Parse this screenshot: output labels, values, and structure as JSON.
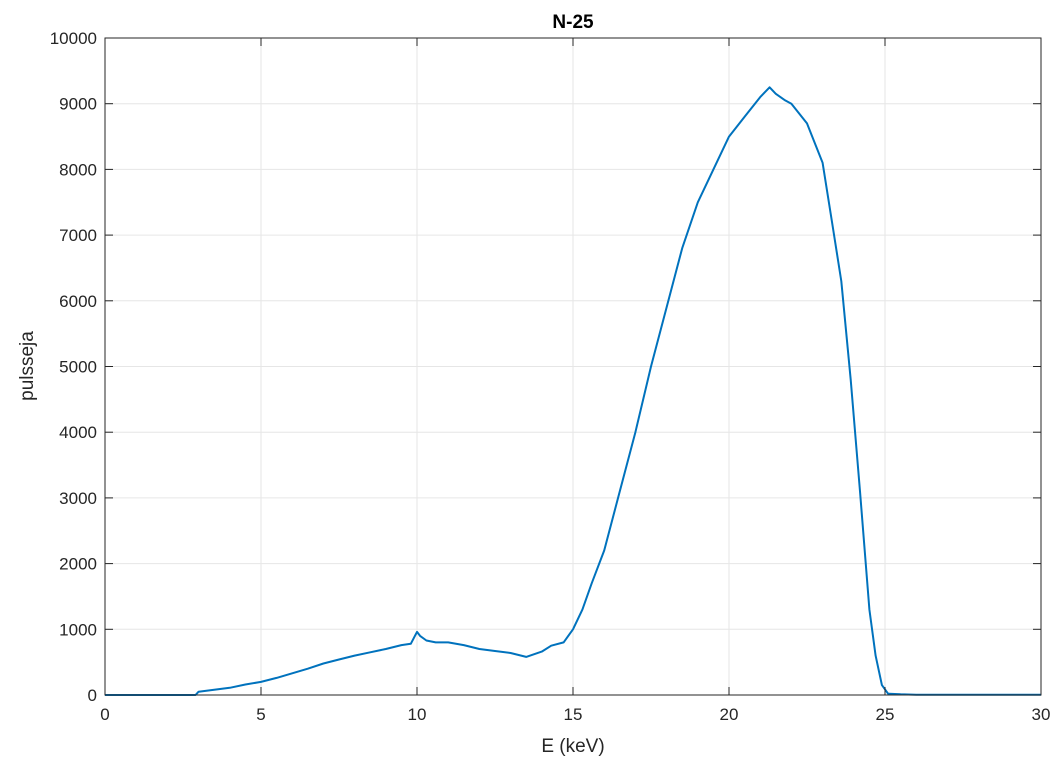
{
  "chart_data": {
    "type": "line",
    "title": "N-25",
    "xlabel": "E (keV)",
    "ylabel": "pulsseja",
    "xlim": [
      0,
      30
    ],
    "ylim": [
      0,
      10000
    ],
    "xticks": [
      0,
      5,
      10,
      15,
      20,
      25,
      30
    ],
    "yticks": [
      0,
      1000,
      2000,
      3000,
      4000,
      5000,
      6000,
      7000,
      8000,
      9000,
      10000
    ],
    "grid": true,
    "box": true,
    "colors": {
      "line": "#0072BD",
      "grid": "#e6e6e6",
      "axis": "#262626"
    },
    "series": [
      {
        "x": [
          0,
          1,
          2,
          2.9,
          3.0,
          3.5,
          4.0,
          4.5,
          5.0,
          5.5,
          6.0,
          6.5,
          7.0,
          7.5,
          8.0,
          8.5,
          9.0,
          9.5,
          9.8,
          10.0,
          10.1,
          10.3,
          10.6,
          11.0,
          11.5,
          12.0,
          12.5,
          13.0,
          13.5,
          14.0,
          14.3,
          14.7,
          15.0,
          15.3,
          15.6,
          16.0,
          16.5,
          17.0,
          17.5,
          18.0,
          18.5,
          19.0,
          19.5,
          20.0,
          20.5,
          21.0,
          21.3,
          21.5,
          21.8,
          22.0,
          22.5,
          23.0,
          23.3,
          23.6,
          23.9,
          24.2,
          24.5,
          24.7,
          24.9,
          25.1,
          25.5,
          26,
          27,
          28,
          29,
          30
        ],
        "y": [
          0,
          0,
          0,
          0,
          50,
          80,
          110,
          160,
          200,
          260,
          330,
          400,
          480,
          540,
          600,
          650,
          700,
          760,
          780,
          960,
          900,
          830,
          800,
          800,
          760,
          700,
          670,
          640,
          580,
          660,
          750,
          800,
          1000,
          1300,
          1700,
          2200,
          3100,
          4000,
          5000,
          5900,
          6800,
          7500,
          8000,
          8500,
          8800,
          9100,
          9250,
          9150,
          9050,
          9000,
          8700,
          8100,
          7200,
          6300,
          4800,
          3100,
          1300,
          600,
          150,
          20,
          10,
          5,
          5,
          5,
          5,
          5
        ]
      }
    ]
  }
}
